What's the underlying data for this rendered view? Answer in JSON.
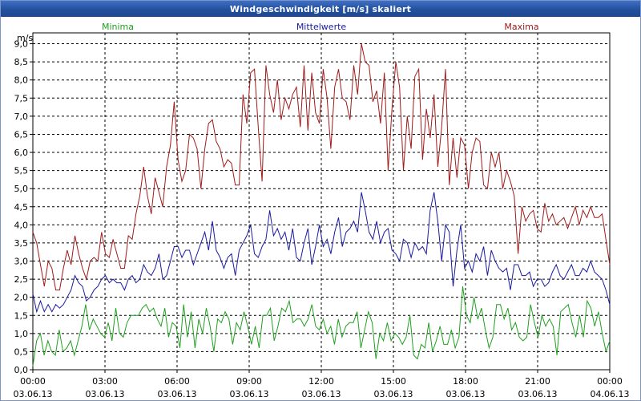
{
  "window": {
    "title": "Windgeschwindigkeit [m/s] skaliert"
  },
  "chart_data": {
    "type": "line",
    "title": "Windgeschwindigkeit [m/s] skaliert",
    "ylabel": "m/s",
    "xlabel": "",
    "ylim": [
      0,
      9.3
    ],
    "xlim_hours": [
      0,
      24
    ],
    "y_ticks": [
      "0,0",
      "0,5",
      "1,0",
      "1,5",
      "2,0",
      "2,5",
      "3,0",
      "3,5",
      "4,0",
      "4,5",
      "5,0",
      "5,5",
      "6,0",
      "6,5",
      "7,0",
      "7,5",
      "8,0",
      "8,5",
      "9,0"
    ],
    "x_ticks": [
      {
        "time": "00:00",
        "date": "03.06.13"
      },
      {
        "time": "03:00",
        "date": "03.06.13"
      },
      {
        "time": "06:00",
        "date": "03.06.13"
      },
      {
        "time": "09:00",
        "date": "03.06.13"
      },
      {
        "time": "12:00",
        "date": "03.06.13"
      },
      {
        "time": "15:00",
        "date": "03.06.13"
      },
      {
        "time": "18:00",
        "date": "03.06.13"
      },
      {
        "time": "21:00",
        "date": "03.06.13"
      },
      {
        "time": "00:00",
        "date": "04.06.13"
      }
    ],
    "grid": true,
    "legend_position": "top",
    "series": [
      {
        "name": "Maxima",
        "color": "#a01a1a",
        "values": [
          3.8,
          3.5,
          2.9,
          2.3,
          3.0,
          2.8,
          2.2,
          2.2,
          2.8,
          3.3,
          2.9,
          3.7,
          3.2,
          2.8,
          2.5,
          3.0,
          3.1,
          3.0,
          3.8,
          3.2,
          3.1,
          3.6,
          3.2,
          2.8,
          2.8,
          3.7,
          3.6,
          4.3,
          4.8,
          5.6,
          4.8,
          4.3,
          5.3,
          4.9,
          4.5,
          5.6,
          6.2,
          7.4,
          5.8,
          5.2,
          5.5,
          6.5,
          6.4,
          6.1,
          5.0,
          6.1,
          6.8,
          6.9,
          6.3,
          6.1,
          5.6,
          5.8,
          5.7,
          5.1,
          5.1,
          7.6,
          6.8,
          8.2,
          8.3,
          6.7,
          5.2,
          8.4,
          7.6,
          7.1,
          8.0,
          6.9,
          7.5,
          7.2,
          7.6,
          7.8,
          6.7,
          8.4,
          6.6,
          8.2,
          7.1,
          6.8,
          8.3,
          7.5,
          6.1,
          7.8,
          8.3,
          7.5,
          7.4,
          6.9,
          8.4,
          7.6,
          9.0,
          8.5,
          8.4,
          7.4,
          7.7,
          6.8,
          8.2,
          5.5,
          7.2,
          8.5,
          7.8,
          5.5,
          7.0,
          6.1,
          8.1,
          8.3,
          5.8,
          7.2,
          6.4,
          7.6,
          5.6,
          6.7,
          8.3,
          5.1,
          6.4,
          5.3,
          6.4,
          6.2,
          5.0,
          6.0,
          6.4,
          6.3,
          5.1,
          5.0,
          6.0,
          5.6,
          6.0,
          5.0,
          5.5,
          5.2,
          4.8,
          3.2,
          4.5,
          4.1,
          4.3,
          4.4,
          3.9,
          3.8,
          4.6,
          4.1,
          4.3,
          4.0,
          4.1,
          4.2,
          3.9,
          4.2,
          4.5,
          4.0,
          4.4,
          4.2,
          4.5,
          4.2,
          4.2,
          4.3,
          3.6,
          2.9
        ]
      },
      {
        "name": "Mittelwerte",
        "color": "#1a1aa0",
        "values": [
          2.1,
          1.6,
          1.9,
          1.6,
          1.8,
          1.6,
          1.8,
          1.7,
          1.8,
          2.0,
          2.2,
          2.6,
          2.4,
          2.3,
          1.9,
          2.0,
          2.2,
          2.3,
          2.5,
          2.6,
          2.4,
          2.5,
          2.4,
          2.4,
          2.2,
          2.5,
          2.6,
          2.4,
          2.5,
          2.9,
          2.7,
          2.6,
          2.8,
          3.2,
          2.5,
          2.6,
          3.0,
          3.4,
          3.4,
          3.1,
          3.3,
          3.3,
          2.9,
          3.2,
          3.5,
          3.8,
          3.3,
          4.1,
          3.3,
          3.1,
          2.8,
          3.1,
          3.2,
          2.6,
          3.3,
          3.5,
          3.7,
          4.0,
          3.2,
          3.1,
          3.4,
          3.6,
          4.4,
          3.7,
          3.9,
          3.6,
          3.8,
          3.3,
          3.9,
          3.1,
          3.0,
          3.5,
          3.9,
          2.9,
          3.4,
          4.0,
          3.4,
          3.6,
          3.2,
          3.8,
          4.2,
          3.4,
          3.8,
          3.9,
          4.1,
          3.8,
          4.9,
          4.4,
          3.8,
          3.6,
          4.1,
          3.5,
          3.8,
          3.9,
          3.3,
          3.2,
          3.0,
          3.6,
          3.5,
          3.1,
          3.5,
          3.3,
          3.4,
          3.2,
          4.4,
          4.9,
          4.1,
          3.0,
          4.0,
          3.8,
          2.3,
          3.3,
          4.0,
          2.8,
          3.0,
          2.7,
          3.2,
          3.0,
          3.4,
          2.6,
          3.3,
          3.0,
          2.8,
          2.7,
          2.8,
          2.2,
          2.9,
          2.9,
          2.6,
          2.6,
          2.7,
          2.3,
          2.5,
          2.5,
          2.3,
          2.4,
          2.7,
          2.9,
          2.6,
          2.5,
          2.7,
          2.9,
          2.6,
          2.6,
          2.8,
          2.7,
          3.0,
          2.7,
          2.6,
          2.5,
          2.2,
          1.8
        ]
      },
      {
        "name": "Minima",
        "color": "#1fa01f",
        "values": [
          0.1,
          0.8,
          1.0,
          0.4,
          0.8,
          0.5,
          0.4,
          1.1,
          0.5,
          0.6,
          0.8,
          0.4,
          0.8,
          1.2,
          1.8,
          1.1,
          1.4,
          1.2,
          1.0,
          0.9,
          1.3,
          0.8,
          1.7,
          1.0,
          0.9,
          1.3,
          1.5,
          1.5,
          1.5,
          1.7,
          1.8,
          1.6,
          1.7,
          1.4,
          1.2,
          1.7,
          0.9,
          1.3,
          1.2,
          0.6,
          1.8,
          0.9,
          1.6,
          0.6,
          1.4,
          1.0,
          1.7,
          1.2,
          0.5,
          1.4,
          1.3,
          1.6,
          1.4,
          0.7,
          1.3,
          1.1,
          1.6,
          1.2,
          0.7,
          1.2,
          0.6,
          1.5,
          1.5,
          1.7,
          0.8,
          1.2,
          1.7,
          1.6,
          1.9,
          1.3,
          1.4,
          1.4,
          1.2,
          1.4,
          1.8,
          1.2,
          1.1,
          1.4,
          1.0,
          1.2,
          0.7,
          1.4,
          0.9,
          1.2,
          1.3,
          1.3,
          1.6,
          0.6,
          1.1,
          1.6,
          1.3,
          0.3,
          1.0,
          0.8,
          1.3,
          0.8,
          1.0,
          0.9,
          0.7,
          0.9,
          1.5,
          0.4,
          0.3,
          0.7,
          0.6,
          1.3,
          0.5,
          0.8,
          1.2,
          0.7,
          0.7,
          1.1,
          0.6,
          0.9,
          2.3,
          1.5,
          1.3,
          2.0,
          1.4,
          1.7,
          1.1,
          0.6,
          0.9,
          1.8,
          1.8,
          1.4,
          1.7,
          1.1,
          1.3,
          0.9,
          0.8,
          0.9,
          1.8,
          1.3,
          0.9,
          1.5,
          1.2,
          1.4,
          1.2,
          0.4,
          1.6,
          1.7,
          1.8,
          1.3,
          0.9,
          1.5,
          0.9,
          1.9,
          1.7,
          1.2,
          1.6,
          1.0,
          0.5,
          0.8
        ]
      }
    ]
  }
}
